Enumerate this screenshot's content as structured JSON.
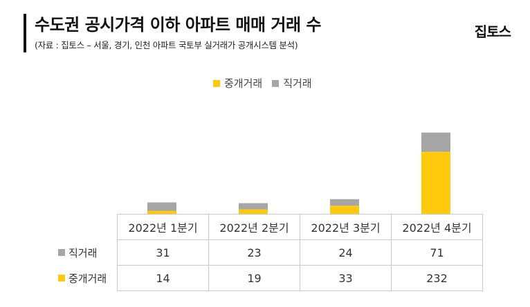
{
  "header": {
    "title": "수도권 공시가격 이하 아파트 매매 거래 수",
    "subtitle": "(자료 : 집토스 – 서울, 경기, 인천 아파트 국토부 실거래가 공개시스템 분석)",
    "logo": "집토스"
  },
  "colors": {
    "brokered": "#FFC90E",
    "direct": "#A6A6A6"
  },
  "chart_data": {
    "type": "bar",
    "stacked": true,
    "categories": [
      "2022년 1분기",
      "2022년 2분기",
      "2022년 3분기",
      "2022년 4분기"
    ],
    "series": [
      {
        "name": "중개거래",
        "values": [
          14,
          19,
          33,
          232
        ],
        "color": "#FFC90E"
      },
      {
        "name": "직거래",
        "values": [
          31,
          23,
          24,
          71
        ],
        "color": "#A6A6A6"
      }
    ],
    "legend_position": "top-center",
    "grid": false
  },
  "legend": {
    "brokered": "중개거래",
    "direct": "직거래"
  },
  "table": {
    "rows": [
      {
        "label": "직거래",
        "values": [
          "31",
          "23",
          "24",
          "71"
        ]
      },
      {
        "label": "중개거래",
        "values": [
          "14",
          "19",
          "33",
          "232"
        ]
      }
    ]
  }
}
